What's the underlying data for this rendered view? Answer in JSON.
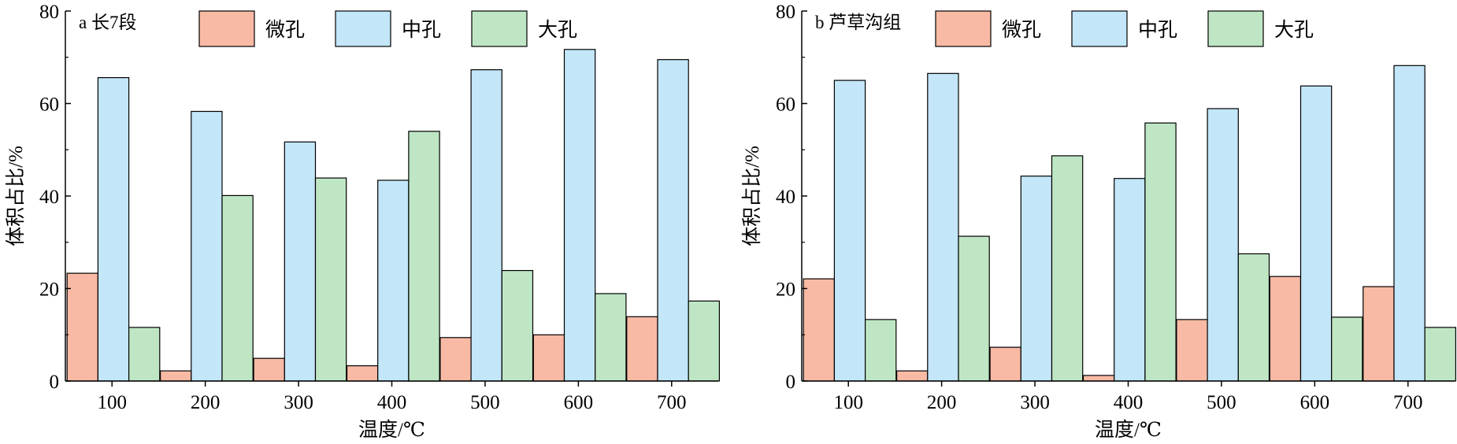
{
  "colors": {
    "微孔": "#f8baa5",
    "中孔": "#c3e6f8",
    "大孔": "#bfe6c4",
    "edge": "#000000"
  },
  "chart_data": [
    {
      "type": "bar",
      "panel_label": "a 长7段",
      "categories": [
        "100",
        "200",
        "300",
        "400",
        "500",
        "600",
        "700"
      ],
      "series": [
        {
          "name": "微孔",
          "values": [
            23.3,
            2.2,
            4.9,
            3.3,
            9.4,
            10.0,
            13.9
          ]
        },
        {
          "name": "中孔",
          "values": [
            65.6,
            58.3,
            51.7,
            43.4,
            67.3,
            71.7,
            69.5
          ]
        },
        {
          "name": "大孔",
          "values": [
            11.6,
            40.1,
            43.9,
            54.0,
            23.9,
            18.9,
            17.3
          ]
        }
      ],
      "xlabel": "温度/℃",
      "ylabel": "体积占比/%",
      "ylim": [
        0,
        80
      ],
      "yticks": [
        "0",
        "20",
        "40",
        "60",
        "80"
      ],
      "legend": "top",
      "grid": false
    },
    {
      "type": "bar",
      "panel_label": "b 芦草沟组",
      "categories": [
        "100",
        "200",
        "300",
        "400",
        "500",
        "600",
        "700"
      ],
      "series": [
        {
          "name": "微孔",
          "values": [
            22.1,
            2.2,
            7.3,
            1.2,
            13.3,
            22.6,
            20.4
          ]
        },
        {
          "name": "中孔",
          "values": [
            65.0,
            66.5,
            44.3,
            43.8,
            58.9,
            63.8,
            68.2
          ]
        },
        {
          "name": "大孔",
          "values": [
            13.3,
            31.3,
            48.7,
            55.8,
            27.5,
            13.8,
            11.6
          ]
        }
      ],
      "xlabel": "温度/℃",
      "ylabel": "体积占比/%",
      "ylim": [
        0,
        80
      ],
      "yticks": [
        "0",
        "20",
        "40",
        "60",
        "80"
      ],
      "legend": "top",
      "grid": false
    }
  ]
}
